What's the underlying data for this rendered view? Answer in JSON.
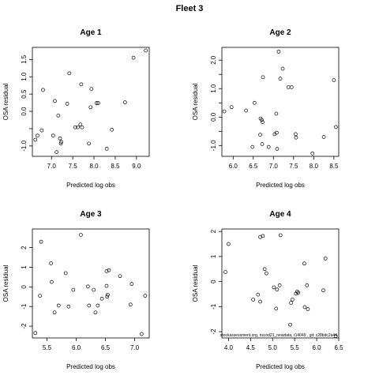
{
  "figure": {
    "title": "Fleet 3",
    "footnote": "stockassessment.org, nscod21_newdata, r14049 , git: c28bdc2a44"
  },
  "chart_data": [
    {
      "type": "scatter",
      "title": "Age 1",
      "xlabel": "Predicted log obs",
      "ylabel": "OSA residual",
      "xlim": [
        6.55,
        9.3
      ],
      "ylim": [
        -1.3,
        1.85
      ],
      "xticks": [
        7.0,
        7.5,
        8.0,
        8.5,
        9.0
      ],
      "xtick_labels": [
        "7.0",
        "7.5",
        "8.0",
        "8.5",
        "9.0"
      ],
      "yticks": [
        -1.0,
        -0.5,
        0.0,
        0.5,
        1.0,
        1.5
      ],
      "ytick_labels": [
        "-1.0",
        "",
        "0.0",
        "0.5",
        "1.0",
        "1.5"
      ],
      "points": [
        {
          "x": 6.62,
          "y": -0.82
        },
        {
          "x": 6.67,
          "y": -0.7
        },
        {
          "x": 6.77,
          "y": -0.55
        },
        {
          "x": 6.8,
          "y": 0.62
        },
        {
          "x": 7.04,
          "y": -0.7
        },
        {
          "x": 7.08,
          "y": 0.3
        },
        {
          "x": 7.12,
          "y": -1.18
        },
        {
          "x": 7.16,
          "y": -0.12
        },
        {
          "x": 7.2,
          "y": -0.78
        },
        {
          "x": 7.22,
          "y": -0.93
        },
        {
          "x": 7.23,
          "y": -0.88
        },
        {
          "x": 7.37,
          "y": 0.22
        },
        {
          "x": 7.42,
          "y": 1.1
        },
        {
          "x": 7.56,
          "y": -0.46
        },
        {
          "x": 7.62,
          "y": -0.46
        },
        {
          "x": 7.68,
          "y": -0.38
        },
        {
          "x": 7.7,
          "y": 0.78
        },
        {
          "x": 7.72,
          "y": -0.46
        },
        {
          "x": 7.88,
          "y": -0.93
        },
        {
          "x": 7.92,
          "y": 0.12
        },
        {
          "x": 7.94,
          "y": 0.65
        },
        {
          "x": 8.06,
          "y": 0.24
        },
        {
          "x": 8.1,
          "y": 0.24
        },
        {
          "x": 8.3,
          "y": -1.08
        },
        {
          "x": 8.42,
          "y": -0.53
        },
        {
          "x": 8.73,
          "y": 0.26
        },
        {
          "x": 8.93,
          "y": 1.55
        },
        {
          "x": 9.22,
          "y": 1.76
        }
      ]
    },
    {
      "type": "scatter",
      "title": "Age 2",
      "xlabel": "Predicted log obs",
      "ylabel": "OSA residual",
      "xlim": [
        5.72,
        8.62
      ],
      "ylim": [
        -1.38,
        2.45
      ],
      "xticks": [
        6.0,
        6.5,
        7.0,
        7.5,
        8.0,
        8.5
      ],
      "xtick_labels": [
        "6.0",
        "6.5",
        "7.0",
        "7.5",
        "8.0",
        "8.5"
      ],
      "yticks": [
        -1.0,
        -0.5,
        0.0,
        0.5,
        1.0,
        1.5,
        2.0
      ],
      "ytick_labels": [
        "-1.0",
        "",
        "0.0",
        "",
        "1.0",
        "",
        "2.0"
      ],
      "points": [
        {
          "x": 5.78,
          "y": 0.2
        },
        {
          "x": 5.96,
          "y": 0.35
        },
        {
          "x": 6.32,
          "y": 0.23
        },
        {
          "x": 6.48,
          "y": -1.05
        },
        {
          "x": 6.53,
          "y": 0.5
        },
        {
          "x": 6.67,
          "y": -0.62
        },
        {
          "x": 6.68,
          "y": -0.05
        },
        {
          "x": 6.71,
          "y": -0.1
        },
        {
          "x": 6.72,
          "y": -0.95
        },
        {
          "x": 6.73,
          "y": -0.18
        },
        {
          "x": 6.74,
          "y": 1.4
        },
        {
          "x": 6.88,
          "y": -1.05
        },
        {
          "x": 7.03,
          "y": -0.6
        },
        {
          "x": 7.07,
          "y": 0.12
        },
        {
          "x": 7.08,
          "y": -0.55
        },
        {
          "x": 7.09,
          "y": -1.12
        },
        {
          "x": 7.13,
          "y": 2.3
        },
        {
          "x": 7.17,
          "y": 1.35
        },
        {
          "x": 7.23,
          "y": 1.7
        },
        {
          "x": 7.37,
          "y": 1.05
        },
        {
          "x": 7.45,
          "y": 1.05
        },
        {
          "x": 7.55,
          "y": -0.6
        },
        {
          "x": 7.56,
          "y": -0.72
        },
        {
          "x": 7.97,
          "y": -1.28
        },
        {
          "x": 8.25,
          "y": -0.7
        },
        {
          "x": 8.5,
          "y": 1.3
        },
        {
          "x": 8.55,
          "y": -0.35
        }
      ]
    },
    {
      "type": "scatter",
      "title": "Age 3",
      "xlabel": "Predicted log obs",
      "ylabel": "OSA residual",
      "xlim": [
        5.25,
        7.25
      ],
      "ylim": [
        -2.6,
        2.95
      ],
      "xticks": [
        5.5,
        6.0,
        6.5,
        7.0
      ],
      "xtick_labels": [
        "5.5",
        "6.0",
        "6.5",
        "7.0"
      ],
      "yticks": [
        -2,
        -1,
        0,
        1,
        2
      ],
      "ytick_labels": [
        "-2",
        "-1",
        "0",
        "1",
        "2"
      ],
      "points": [
        {
          "x": 5.3,
          "y": -2.35
        },
        {
          "x": 5.38,
          "y": -0.45
        },
        {
          "x": 5.4,
          "y": 2.3
        },
        {
          "x": 5.57,
          "y": 1.2
        },
        {
          "x": 5.58,
          "y": 0.25
        },
        {
          "x": 5.63,
          "y": -1.3
        },
        {
          "x": 5.7,
          "y": -0.95
        },
        {
          "x": 5.82,
          "y": 0.7
        },
        {
          "x": 5.87,
          "y": -1.0
        },
        {
          "x": 5.95,
          "y": -0.15
        },
        {
          "x": 6.08,
          "y": 2.65
        },
        {
          "x": 6.2,
          "y": 0.02
        },
        {
          "x": 6.22,
          "y": -0.95
        },
        {
          "x": 6.3,
          "y": -0.15
        },
        {
          "x": 6.33,
          "y": -1.3
        },
        {
          "x": 6.37,
          "y": -0.95
        },
        {
          "x": 6.44,
          "y": -0.6
        },
        {
          "x": 6.52,
          "y": 0.05
        },
        {
          "x": 6.52,
          "y": 0.8
        },
        {
          "x": 6.53,
          "y": -0.5
        },
        {
          "x": 6.54,
          "y": -0.4
        },
        {
          "x": 6.56,
          "y": 0.85
        },
        {
          "x": 6.75,
          "y": 0.55
        },
        {
          "x": 6.93,
          "y": -0.9
        },
        {
          "x": 6.95,
          "y": 0.15
        },
        {
          "x": 7.12,
          "y": -2.4
        },
        {
          "x": 7.18,
          "y": -0.45
        }
      ]
    },
    {
      "type": "scatter",
      "title": "Age 4",
      "xlabel": "Predicted log obs",
      "ylabel": "OSA residual",
      "xlim": [
        3.85,
        6.5
      ],
      "ylim": [
        -2.25,
        2.1
      ],
      "xticks": [
        4.0,
        4.5,
        5.0,
        5.5,
        6.0,
        6.5
      ],
      "xtick_labels": [
        "4.0",
        "4.5",
        "5.0",
        "5.5",
        "6.0",
        "6.5"
      ],
      "yticks": [
        -2,
        -1,
        0,
        1,
        2
      ],
      "ytick_labels": [
        "-2",
        "-1",
        "0",
        "1",
        "2"
      ],
      "points": [
        {
          "x": 3.93,
          "y": 0.38
        },
        {
          "x": 4.0,
          "y": 1.5
        },
        {
          "x": 4.56,
          "y": -0.72
        },
        {
          "x": 4.67,
          "y": -0.52
        },
        {
          "x": 4.72,
          "y": -0.8
        },
        {
          "x": 4.72,
          "y": 1.78
        },
        {
          "x": 4.78,
          "y": 1.82
        },
        {
          "x": 4.82,
          "y": 0.5
        },
        {
          "x": 4.86,
          "y": 0.33
        },
        {
          "x": 5.03,
          "y": -0.23
        },
        {
          "x": 5.08,
          "y": -1.08
        },
        {
          "x": 5.1,
          "y": -0.32
        },
        {
          "x": 5.16,
          "y": -0.15
        },
        {
          "x": 5.18,
          "y": 1.85
        },
        {
          "x": 5.4,
          "y": -1.72
        },
        {
          "x": 5.42,
          "y": -0.85
        },
        {
          "x": 5.45,
          "y": -0.72
        },
        {
          "x": 5.53,
          "y": -0.48
        },
        {
          "x": 5.56,
          "y": -0.4
        },
        {
          "x": 5.58,
          "y": -0.45
        },
        {
          "x": 5.72,
          "y": 0.72
        },
        {
          "x": 5.73,
          "y": -1.02
        },
        {
          "x": 5.8,
          "y": -1.1
        },
        {
          "x": 5.78,
          "y": -0.15
        },
        {
          "x": 6.15,
          "y": -0.35
        },
        {
          "x": 6.2,
          "y": 0.92
        },
        {
          "x": 6.43,
          "y": -2.18
        }
      ]
    }
  ]
}
